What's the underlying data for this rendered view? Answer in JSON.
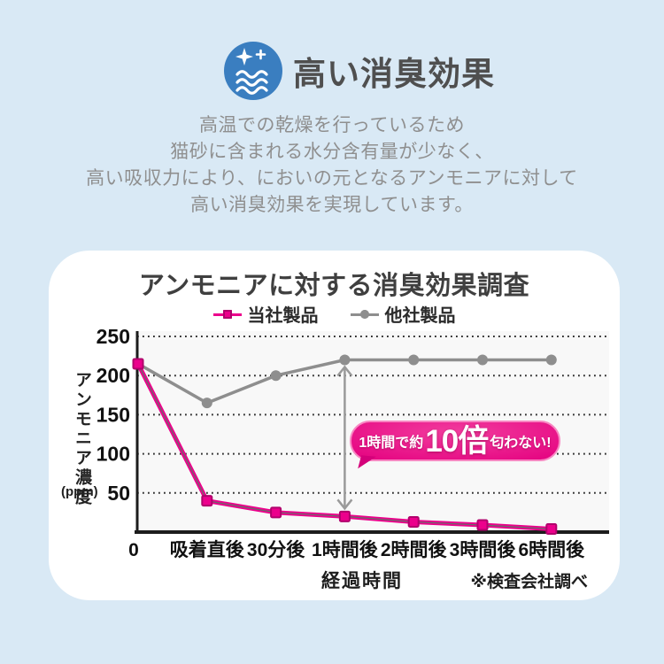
{
  "colors": {
    "page-bg": "#d9e9f5",
    "card-bg": "#ffffff",
    "icon-blue": "#3a7ec0",
    "title-gray": "#4f4f4f",
    "desc-gray": "#8f8f8f",
    "chart-title": "#3f3f3f",
    "bubble-pink": "#e4007f",
    "arrow-gray": "#9a9a9a",
    "axis-black": "#1c1c1c"
  },
  "header": {
    "icon": "sparkle-waves-deodorize-icon",
    "title": "高い消臭効果"
  },
  "description": {
    "line1": "高温での乾燥を行っているため",
    "line2": "猫砂に含まれる水分含有量が少なく、",
    "line3": "高い吸収力により、においの元となるアンモニアに対して",
    "line4": "高い消臭効果を実現しています。"
  },
  "chart_data": {
    "type": "line",
    "title": "アンモニアに対する消臭効果調査",
    "categories": [
      "0",
      "吸着直後",
      "30分後",
      "1時間後",
      "2時間後",
      "3時間後",
      "6時間後"
    ],
    "series": [
      {
        "name": "当社製品",
        "color": "#ec008c",
        "marker": "square",
        "marker_border": "#b1006c",
        "values": [
          215,
          40,
          25,
          20,
          13,
          9,
          4
        ]
      },
      {
        "name": "他社製品",
        "color": "#8e8e8e",
        "marker": "circle",
        "marker_border": "#8e8e8e",
        "values": [
          215,
          165,
          200,
          220,
          220,
          220,
          220
        ]
      }
    ],
    "ylabel": "アンモニア濃度",
    "yunit": "(ppm)",
    "xlabel": "経過時間",
    "yticks": [
      250,
      200,
      150,
      100,
      50
    ],
    "ylim": [
      0,
      250
    ],
    "grid": "horizontal-dotted",
    "legend_position": "top-center",
    "annotation": {
      "at_category": "1時間後",
      "text_prefix": "1時間で約",
      "text_big": "10倍",
      "text_suffix": "匂わない!",
      "arrow": "double-headed vertical between 他社製品 and 当社製品 at 1時間後"
    },
    "source_note": "※検査会社調べ"
  }
}
